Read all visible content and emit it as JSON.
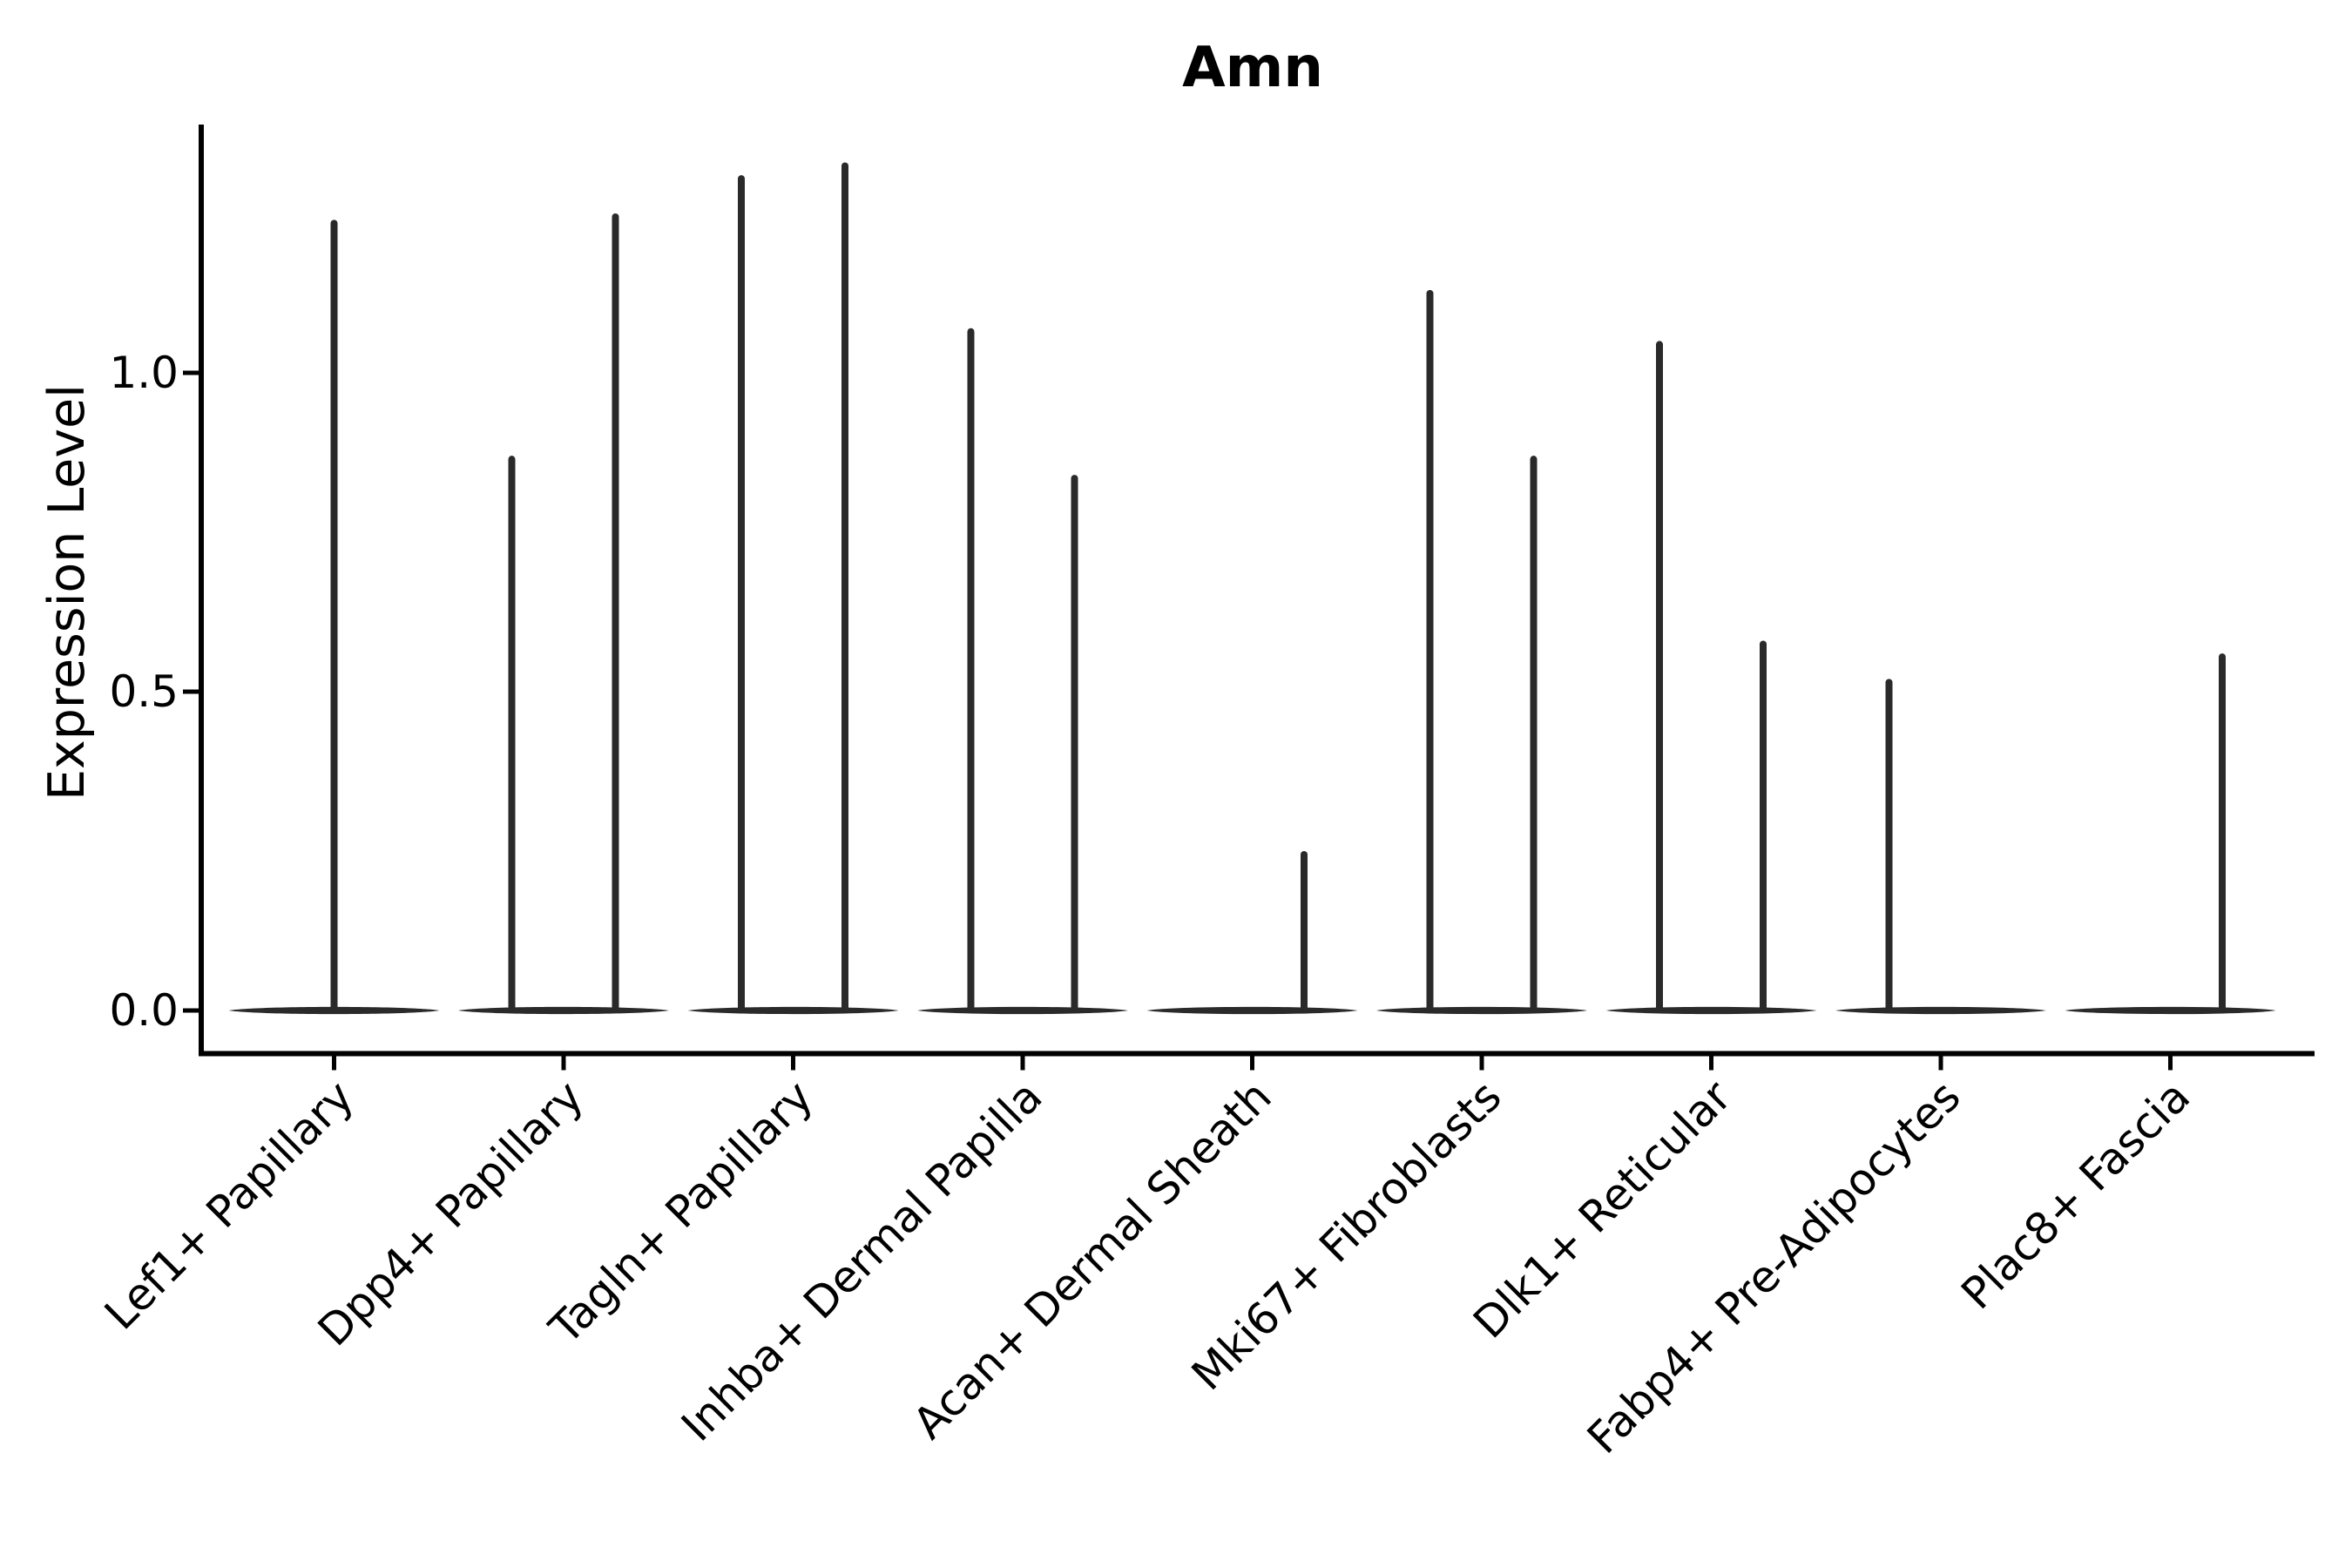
{
  "chart_data": {
    "type": "violin",
    "title": "Amn",
    "xlabel": "",
    "ylabel": "Expression Level",
    "ylim": [
      -0.07,
      1.39
    ],
    "yticks": [
      0.0,
      0.5,
      1.0
    ],
    "ytick_labels": [
      "0.0",
      "0.5",
      "1.0"
    ],
    "grid": false,
    "legend": "none",
    "spines": [
      "left",
      "bottom"
    ],
    "categories": [
      "Lef1+ Papillary",
      "Dpp4+ Papillary",
      "Tagln+ Papillary",
      "Inhba+ Dermal Papilla",
      "Acan+ Dermal Sheath",
      "Mki67+ Fibroblasts",
      "Dlk1+ Reticular",
      "Fabp4+ Pre-Adipocytes",
      "Plac8+ Fascia"
    ],
    "violin_description": "Each category shows a flat near-zero violin body (most cells at 0 expression) with thin needle spikes reaching the maximum expression; categories with two spikes contain two half-width violins (left/right), single centered spikes are one full-width violin.",
    "violins": [
      {
        "category": "Lef1+ Papillary",
        "spikes": [
          {
            "position": "center",
            "max_expression": 1.24
          }
        ]
      },
      {
        "category": "Dpp4+ Papillary",
        "spikes": [
          {
            "position": "left",
            "max_expression": 0.87
          },
          {
            "position": "right",
            "max_expression": 1.25
          }
        ]
      },
      {
        "category": "Tagln+ Papillary",
        "spikes": [
          {
            "position": "left",
            "max_expression": 1.31
          },
          {
            "position": "right",
            "max_expression": 1.33
          }
        ]
      },
      {
        "category": "Inhba+ Dermal Papilla",
        "spikes": [
          {
            "position": "left",
            "max_expression": 1.07
          },
          {
            "position": "right",
            "max_expression": 0.84
          }
        ]
      },
      {
        "category": "Acan+ Dermal Sheath",
        "spikes": [
          {
            "position": "right",
            "max_expression": 0.25
          }
        ]
      },
      {
        "category": "Mki67+ Fibroblasts",
        "spikes": [
          {
            "position": "left",
            "max_expression": 1.13
          },
          {
            "position": "right",
            "max_expression": 0.87
          }
        ]
      },
      {
        "category": "Dlk1+ Reticular",
        "spikes": [
          {
            "position": "left",
            "max_expression": 1.05
          },
          {
            "position": "right",
            "max_expression": 0.58
          }
        ]
      },
      {
        "category": "Fabp4+ Pre-Adipocytes",
        "spikes": [
          {
            "position": "left",
            "max_expression": 0.52
          }
        ]
      },
      {
        "category": "Plac8+ Fascia",
        "spikes": [
          {
            "position": "right",
            "max_expression": 0.56
          }
        ]
      }
    ],
    "baseline_expression": 0.0,
    "colors": {
      "violin_stroke": "#2a2a2a",
      "axis": "#000000",
      "text": "#000000",
      "background": "#ffffff"
    }
  }
}
